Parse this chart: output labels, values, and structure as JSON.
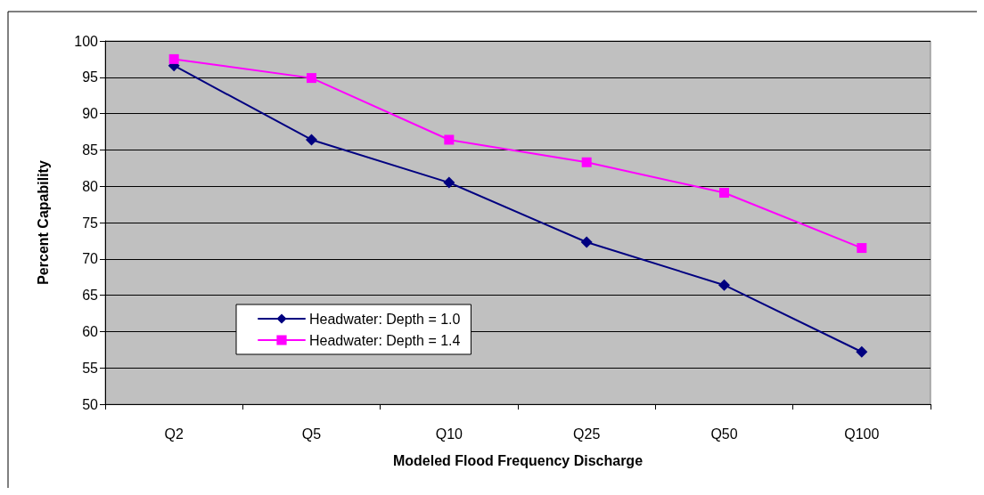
{
  "chart_data": {
    "type": "line",
    "xlabel": "Modeled Flood Frequency Discharge",
    "ylabel": "Percent Capability",
    "categories": [
      "Q2",
      "Q5",
      "Q10",
      "Q25",
      "Q50",
      "Q100"
    ],
    "series": [
      {
        "name": "Headwater: Depth = 1.0",
        "color": "#000080",
        "marker": "diamond",
        "values": [
          96.6,
          86.4,
          80.5,
          72.3,
          66.4,
          57.2
        ]
      },
      {
        "name": "Headwater: Depth = 1.4",
        "color": "#ff00ff",
        "marker": "square",
        "values": [
          97.5,
          94.9,
          86.4,
          83.3,
          79.1,
          71.5
        ]
      }
    ],
    "ylim": [
      50,
      100
    ],
    "yticks": [
      50,
      55,
      60,
      65,
      70,
      75,
      80,
      85,
      90,
      95,
      100
    ],
    "grid": "y",
    "legend": "bottom left",
    "line_style": "solid"
  }
}
